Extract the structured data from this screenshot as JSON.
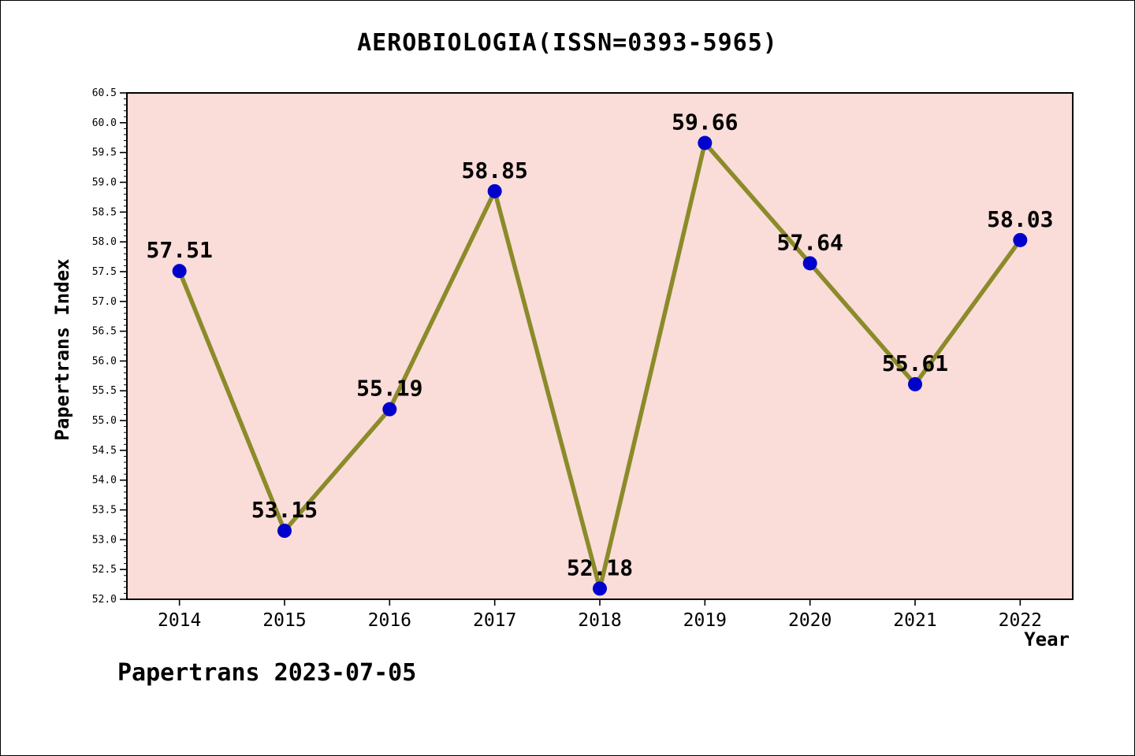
{
  "title": "AEROBIOLOGIA(ISSN=0393-5965)",
  "footer": "Papertrans 2023-07-05",
  "chart_data": {
    "type": "line",
    "title": "AEROBIOLOGIA(ISSN=0393-5965)",
    "xlabel": "Year",
    "ylabel": "Papertrans Index",
    "x": [
      2014,
      2015,
      2016,
      2017,
      2018,
      2019,
      2020,
      2021,
      2022
    ],
    "values": [
      57.51,
      53.15,
      55.19,
      58.85,
      52.18,
      59.66,
      57.64,
      55.61,
      58.03
    ],
    "point_labels": [
      "57.51",
      "53.15",
      "55.19",
      "58.85",
      "52.18",
      "59.66",
      "57.64",
      "55.61",
      "58.03"
    ],
    "xlim": [
      2013.5,
      2022.5
    ],
    "ylim": [
      52.0,
      60.5
    ],
    "ytick_major_step": 0.5,
    "ytick_minor_step": 0.1,
    "ytick_labels": [
      "52.0",
      "52.5",
      "53.0",
      "53.5",
      "54.0",
      "54.5",
      "55.0",
      "55.5",
      "56.0",
      "56.5",
      "57.0",
      "57.5",
      "58.0",
      "58.5",
      "59.0",
      "59.5",
      "60.0",
      "60.5"
    ],
    "xtick_labels": [
      "2014",
      "2015",
      "2016",
      "2017",
      "2018",
      "2019",
      "2020",
      "2021",
      "2022"
    ],
    "grid": false,
    "legend": null,
    "line_color": "#8B8B2A",
    "marker_color": "#0000CC",
    "plot_bg": "#FADCD9",
    "axis_color": "#000000",
    "text_color": "#000000"
  }
}
